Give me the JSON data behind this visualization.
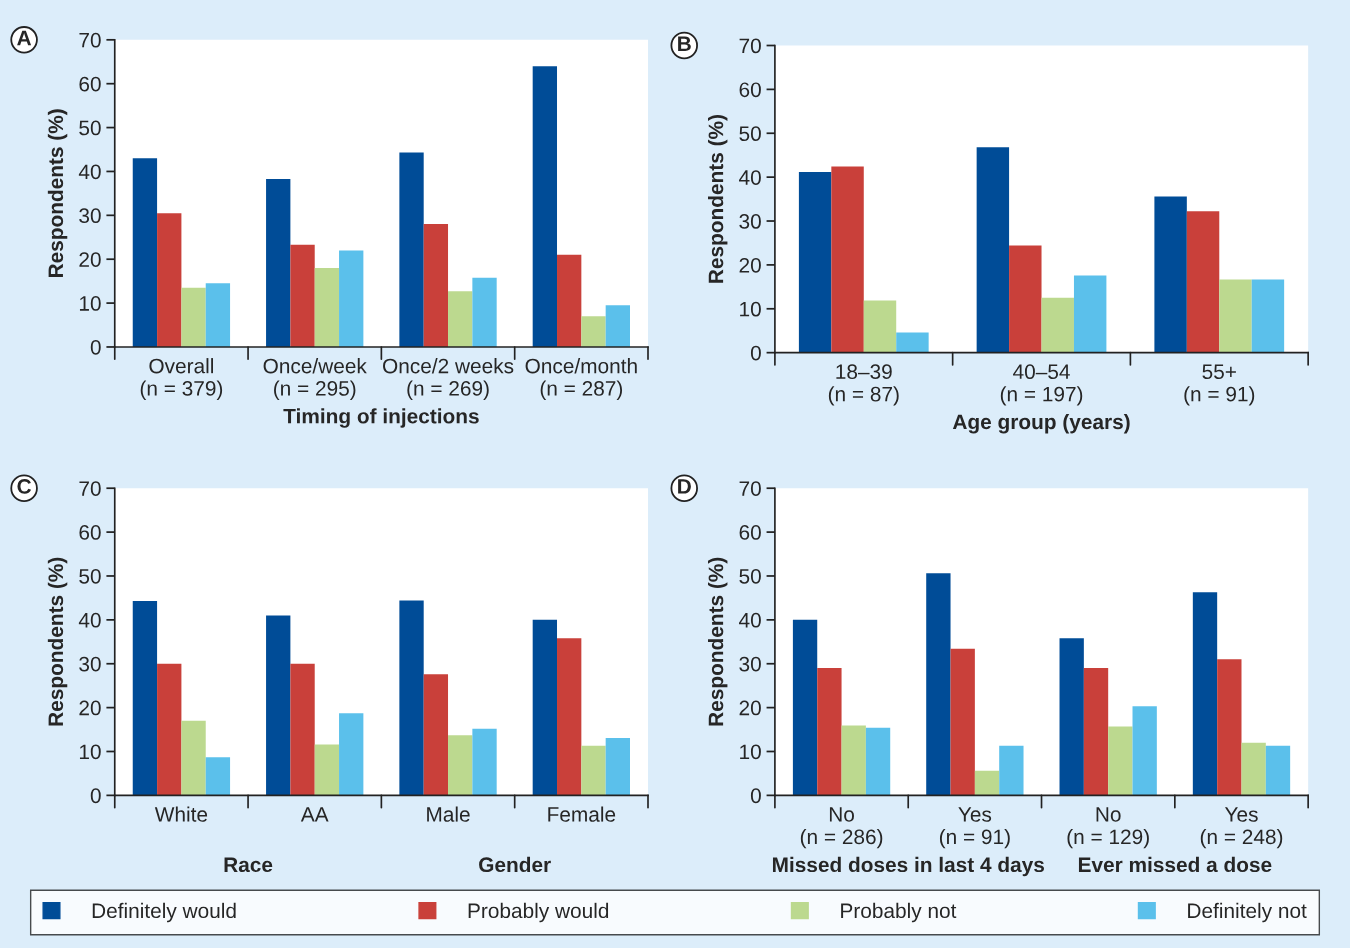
{
  "chart_data": [
    {
      "type": "bar",
      "annotations": [
        "A"
      ],
      "xlabel": "Timing of injections",
      "ylabel": "Respondents (%)",
      "categories": [
        "Overall\n(n = 379)",
        "Once/week\n(n = 295)",
        "Once/2 weeks\n(n = 269)",
        "Once/month\n(n = 287)"
      ],
      "series": [
        {
          "name": "Definitely would",
          "color": "#004c97",
          "values": [
            43,
            38.3,
            44.3,
            64
          ]
        },
        {
          "name": "Probably would",
          "color": "#c9403a",
          "values": [
            30.5,
            23.3,
            28,
            21
          ]
        },
        {
          "name": "Probably not",
          "color": "#bcd98f",
          "values": [
            13.5,
            18,
            12.7,
            7
          ]
        },
        {
          "name": "Definitely not",
          "color": "#5bc0eb",
          "values": [
            14.5,
            22,
            15.8,
            9.5
          ]
        }
      ],
      "ylim": [
        0,
        70
      ],
      "yticks": [
        0,
        10,
        20,
        30,
        40,
        50,
        60,
        70
      ],
      "legend": "bottom"
    },
    {
      "type": "bar",
      "annotations": [
        "B"
      ],
      "xlabel": "Age group (years)",
      "ylabel": "Respondents (%)",
      "categories": [
        "18–39\n(n = 87)",
        "40–54\n(n = 197)",
        "55+\n(n = 91)"
      ],
      "series": [
        {
          "color": "#004c97",
          "values": [
            41.2,
            46.8,
            35.6
          ]
        },
        {
          "color": "#c9403a",
          "values": [
            42.4,
            24.4,
            32.2
          ]
        },
        {
          "color": "#bcd98f",
          "values": [
            11.9,
            12.5,
            16.7
          ]
        },
        {
          "color": "#5bc0eb",
          "values": [
            4.6,
            17.6,
            16.7
          ]
        }
      ],
      "ylim": [
        0,
        70
      ],
      "yticks": [
        0,
        10,
        20,
        30,
        40,
        50,
        60,
        70
      ]
    },
    {
      "type": "bar",
      "annotations": [
        "C",
        "Race",
        "Gender"
      ],
      "ylabel": "Respondents (%)",
      "categories": [
        "White",
        "AA",
        "Male",
        "Female"
      ],
      "series": [
        {
          "color": "#004c97",
          "values": [
            44.3,
            41,
            44.4,
            40
          ]
        },
        {
          "color": "#c9403a",
          "values": [
            30,
            30,
            27.6,
            35.8
          ]
        },
        {
          "color": "#bcd98f",
          "values": [
            17,
            11.6,
            13.7,
            11.3
          ]
        },
        {
          "color": "#5bc0eb",
          "values": [
            8.7,
            18.7,
            15.2,
            13.1
          ]
        }
      ],
      "ylim": [
        0,
        70
      ],
      "yticks": [
        0,
        10,
        20,
        30,
        40,
        50,
        60,
        70
      ]
    },
    {
      "type": "bar",
      "annotations": [
        "D",
        "Missed doses in last 4 days",
        "Ever missed a dose"
      ],
      "ylabel": "Respondents (%)",
      "categories": [
        "No\n(n = 286)",
        "Yes\n(n = 91)",
        "No\n(n = 129)",
        "Yes\n(n = 248)"
      ],
      "series": [
        {
          "color": "#004c97",
          "values": [
            40,
            50.6,
            35.8,
            46.3
          ]
        },
        {
          "color": "#c9403a",
          "values": [
            29,
            33.4,
            29,
            31
          ]
        },
        {
          "color": "#bcd98f",
          "values": [
            15.9,
            5.6,
            15.7,
            12
          ]
        },
        {
          "color": "#5bc0eb",
          "values": [
            15.4,
            11.3,
            20.3,
            11.3
          ]
        }
      ],
      "ylim": [
        0,
        70
      ],
      "yticks": [
        0,
        10,
        20,
        30,
        40,
        50,
        60,
        70
      ]
    }
  ]
}
